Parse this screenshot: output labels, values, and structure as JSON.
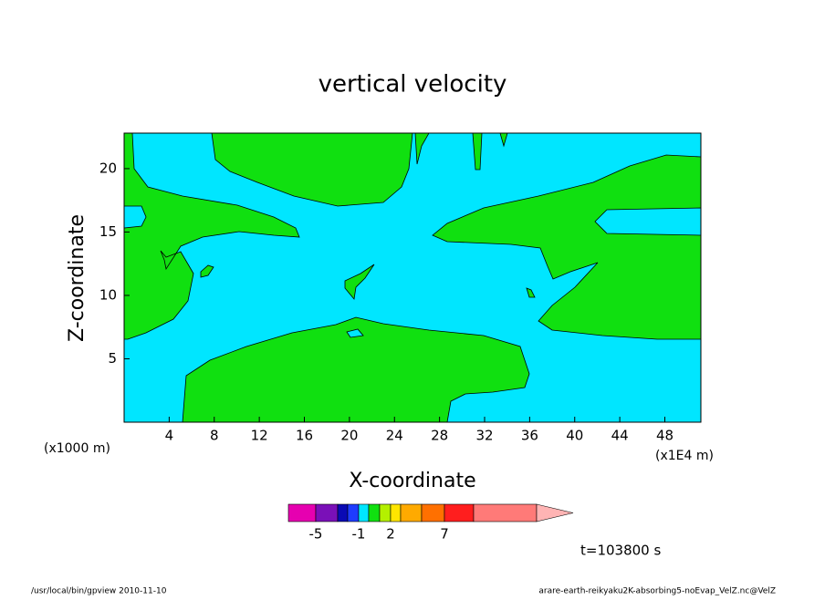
{
  "chart_data": {
    "type": "contour",
    "title": "vertical velocity",
    "x_label": "X-coordinate",
    "y_label": "Z-coordinate",
    "x_unit": "(x1E4 m)",
    "y_unit": "(x1000 m)",
    "xlim": [
      0,
      51.2
    ],
    "xticks": [
      4,
      8,
      12,
      16,
      20,
      24,
      28,
      32,
      36,
      40,
      44,
      48
    ],
    "ylim": [
      0,
      22.8
    ],
    "yticks": [
      5,
      10,
      15,
      20
    ],
    "colorbar": {
      "colors": [
        "#e600b0",
        "#7a10b8",
        "#0a0ab4",
        "#1e3cff",
        "#00e6ff",
        "#10e010",
        "#b4f000",
        "#ffe600",
        "#ffaa00",
        "#ff7000",
        "#ff1e1e",
        "#ff7a78",
        "#ffb4b4"
      ],
      "ticks": [
        -5,
        -1,
        2,
        7
      ]
    },
    "time_label": "t=103800 s",
    "footer_left": "/usr/local/bin/gpview  2010-11-10",
    "footer_right": "arare-earth-reikyaku2K-absorbing5-noEvap_VelZ.nc@VelZ"
  }
}
